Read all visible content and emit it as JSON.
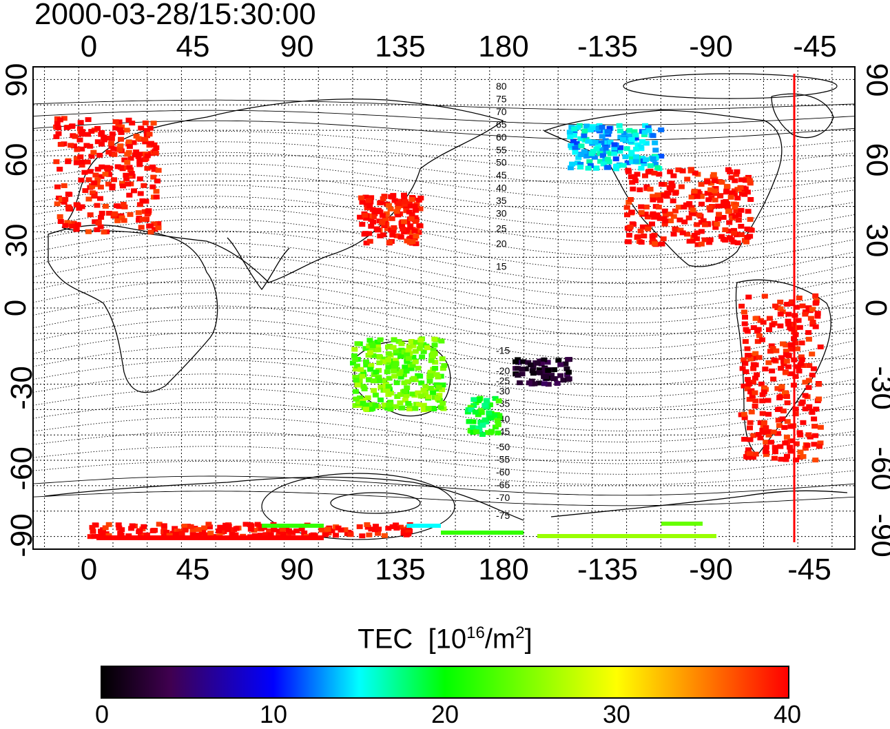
{
  "timestamp": "2000-03-28/15:30:00",
  "x_ticks": [
    "0",
    "45",
    "90",
    "135",
    "180",
    "-135",
    "-90",
    "-45"
  ],
  "y_ticks": [
    "90",
    "60",
    "30",
    "0",
    "-30",
    "-60",
    "-90"
  ],
  "contour_labels": [
    "80",
    "75",
    "70",
    "65",
    "60",
    "55",
    "50",
    "45",
    "40",
    "35",
    "30",
    "25",
    "20",
    "15",
    "-15",
    "-20",
    "-25",
    "-30",
    "-35",
    "-40",
    "-45",
    "-50",
    "-55",
    "-60",
    "-65",
    "-70",
    "-75"
  ],
  "colorbar": {
    "title": "TEC",
    "unit_prefix": "[10",
    "unit_exp": "16",
    "unit_mid": "/m",
    "unit_exp2": "2",
    "unit_suffix": "]",
    "labels": [
      "0",
      "10",
      "20",
      "30",
      "40"
    ],
    "range": [
      0,
      40
    ]
  },
  "colors": {
    "high": "#ff0000",
    "orange": "#ff8c00",
    "yellow": "#e6e600",
    "green": "#33ff00",
    "cyan": "#00e5e5",
    "blue": "#0033ff",
    "purple": "#400080"
  },
  "map": {
    "projection": "equirectangular",
    "lon_start": -25,
    "lon_range_deg": 360,
    "lat_range": [
      -95,
      95
    ],
    "meridian_marker_lon": -52,
    "regions": [
      {
        "name": "europe",
        "lon": [
          -15,
          30
        ],
        "lat": [
          30,
          75
        ],
        "tec": 40
      },
      {
        "name": "usa",
        "lon": [
          -125,
          -70
        ],
        "lat": [
          25,
          55
        ],
        "tec": 40
      },
      {
        "name": "east-asia",
        "lon": [
          118,
          145
        ],
        "lat": [
          25,
          45
        ],
        "tec": 40
      },
      {
        "name": "south-america",
        "lon": [
          -75,
          -40
        ],
        "lat": [
          -60,
          5
        ],
        "tec": 40
      },
      {
        "name": "australia",
        "lon": [
          115,
          155
        ],
        "lat": [
          -40,
          -12
        ],
        "tec": 24
      },
      {
        "name": "new-zealand",
        "lon": [
          165,
          180
        ],
        "lat": [
          -50,
          -35
        ],
        "tec": 20
      },
      {
        "name": "canada",
        "lon": [
          -150,
          -110
        ],
        "lat": [
          55,
          72
        ],
        "tec": 14
      },
      {
        "name": "south-pacific",
        "lon": [
          -175,
          -150
        ],
        "lat": [
          -30,
          -20
        ],
        "tec": 2
      },
      {
        "name": "antarctica-south",
        "lon": [
          0,
          140
        ],
        "lat": [
          -90,
          -85
        ],
        "tec": 40
      }
    ]
  }
}
